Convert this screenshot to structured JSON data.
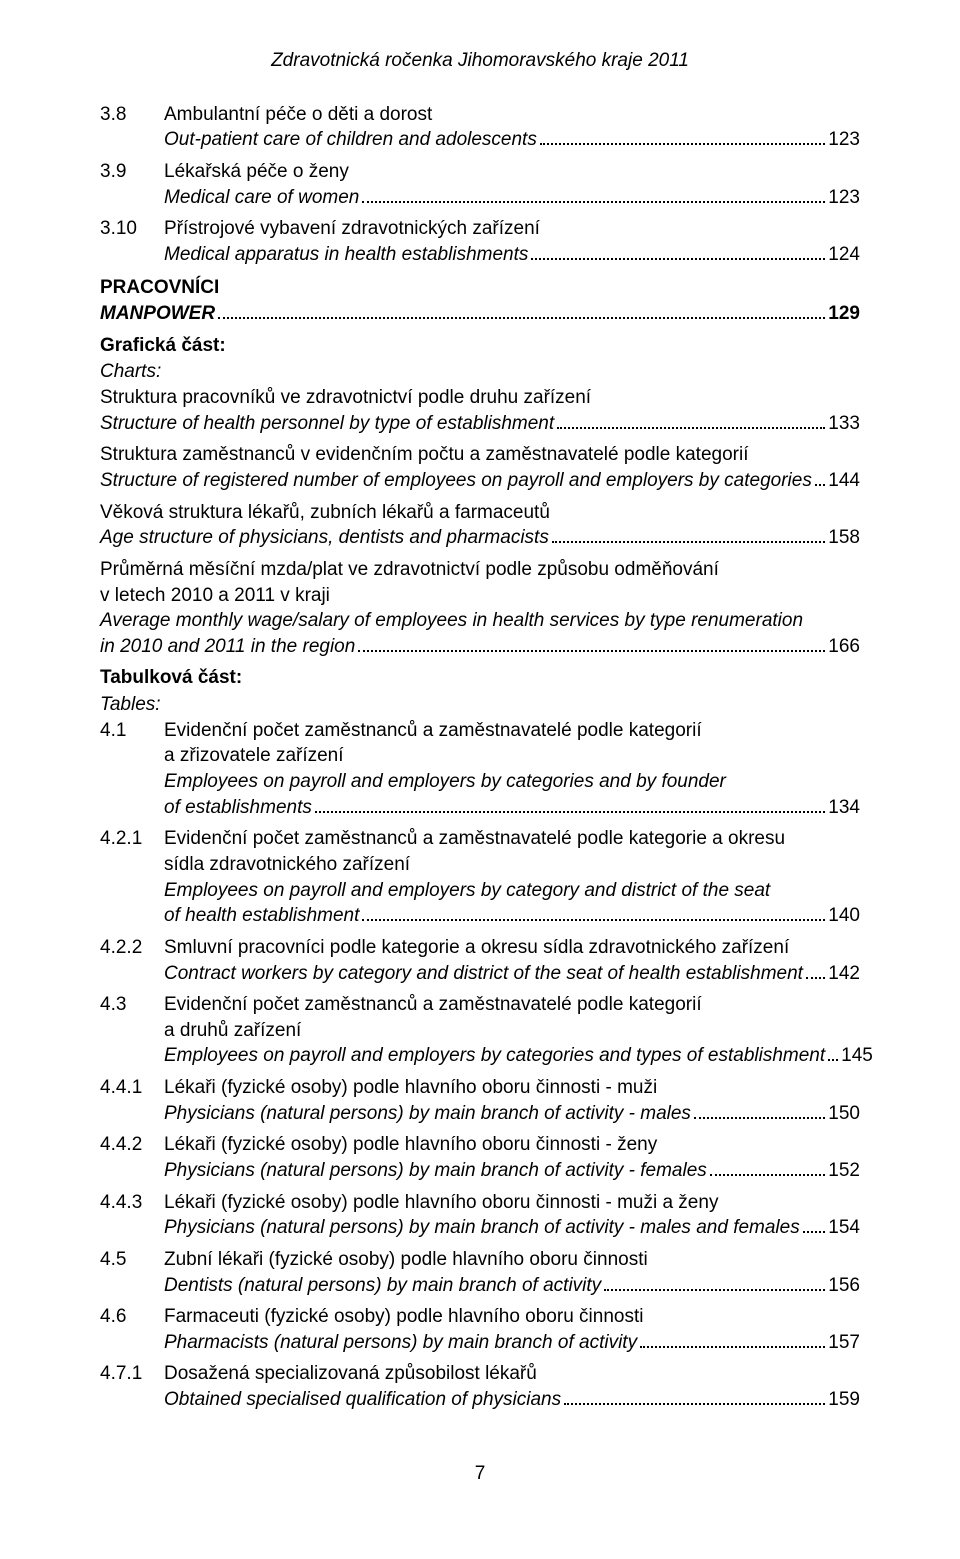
{
  "page": {
    "header": "Zdravotnická ročenka Jihomoravského kraje 2011",
    "footer_page": "7"
  },
  "entries": {
    "e38": {
      "num": "3.8",
      "cs": "Ambulantní péče o děti a dorost",
      "en": "Out-patient care of children and adolescents",
      "page": "123"
    },
    "e39": {
      "num": "3.9",
      "cs": "Lékařská péče o ženy",
      "en": "Medical care of women",
      "page": "123"
    },
    "e310": {
      "num": "3.10",
      "cs": "Přístrojové vybavení zdravotnických zařízení",
      "en": "Medical apparatus in health establishments",
      "page": "124"
    },
    "pracovnici": {
      "cs": "PRACOVNÍCI",
      "en": "MANPOWER",
      "page": "129"
    },
    "charts_label_cs": "Grafická část:",
    "charts_label_en": "Charts:",
    "chart1": {
      "cs": "Struktura pracovníků ve zdravotnictví podle druhu zařízení",
      "en": "Structure of health personnel by type of establishment",
      "page": "133"
    },
    "chart2": {
      "cs": "Struktura zaměstnanců v evidenčním počtu a zaměstnavatelé podle kategorií",
      "en": "Structure of registered number of employees on payroll and employers by categories",
      "page": "144"
    },
    "chart3": {
      "cs": "Věková struktura lékařů, zubních lékařů a farmaceutů",
      "en": "Age structure of physicians, dentists and pharmacists",
      "page": "158"
    },
    "chart4": {
      "cs1": "Průměrná měsíční mzda/plat ve zdravotnictví podle způsobu odměňování",
      "cs2": "v letech 2010 a 2011 v kraji",
      "en1": "Average monthly wage/salary of employees in health services by type renumeration",
      "en2": "in 2010 and 2011 in the region",
      "page": "166"
    },
    "tables_label_cs": "Tabulková část:",
    "tables_label_en": "Tables:",
    "e41": {
      "num": "4.1",
      "cs1": "Evidenční počet zaměstnanců a zaměstnavatelé podle kategorií",
      "cs2": "a zřizovatele zařízení",
      "en1": "Employees on payroll and employers by categories and by founder",
      "en2": "of establishments",
      "page": "134"
    },
    "e421": {
      "num": "4.2.1",
      "cs1": "Evidenční počet zaměstnanců a zaměstnavatelé podle kategorie a okresu",
      "cs2": "sídla zdravotnického zařízení",
      "en1": "Employees on payroll and employers by category and district of the seat",
      "en2": "of health establishment",
      "page": "140"
    },
    "e422": {
      "num": "4.2.2",
      "cs": "Smluvní pracovníci podle kategorie a okresu sídla zdravotnického zařízení",
      "en": "Contract workers by category and district of the seat of health establishment",
      "page": "142"
    },
    "e43": {
      "num": "4.3",
      "cs1": "Evidenční počet zaměstnanců a zaměstnavatelé podle kategorií",
      "cs2": "a druhů zařízení",
      "en": "Employees on payroll and employers by categories and types of establishment",
      "page": "145"
    },
    "e441": {
      "num": "4.4.1",
      "cs": "Lékaři (fyzické osoby) podle hlavního oboru činnosti - muži",
      "en": "Physicians (natural persons) by main branch of activity - males",
      "page": "150"
    },
    "e442": {
      "num": "4.4.2",
      "cs": "Lékaři (fyzické osoby) podle hlavního oboru činnosti - ženy",
      "en": "Physicians (natural persons) by main branch of activity - females",
      "page": "152"
    },
    "e443": {
      "num": "4.4.3",
      "cs": "Lékaři (fyzické osoby) podle hlavního oboru činnosti - muži a ženy",
      "en": "Physicians (natural persons) by main branch of activity - males and females",
      "page": "154"
    },
    "e45": {
      "num": "4.5",
      "cs": "Zubní lékaři (fyzické osoby) podle hlavního oboru činnosti",
      "en": "Dentists (natural persons) by main branch of activity",
      "page": "156"
    },
    "e46": {
      "num": "4.6",
      "cs": "Farmaceuti (fyzické osoby) podle hlavního oboru činnosti",
      "en": "Pharmacists (natural persons) by main branch of activity",
      "page": "157"
    },
    "e471": {
      "num": "4.7.1",
      "cs": "Dosažená specializovaná způsobilost lékařů",
      "en": "Obtained specialised qualification of physicians",
      "page": "159"
    }
  }
}
